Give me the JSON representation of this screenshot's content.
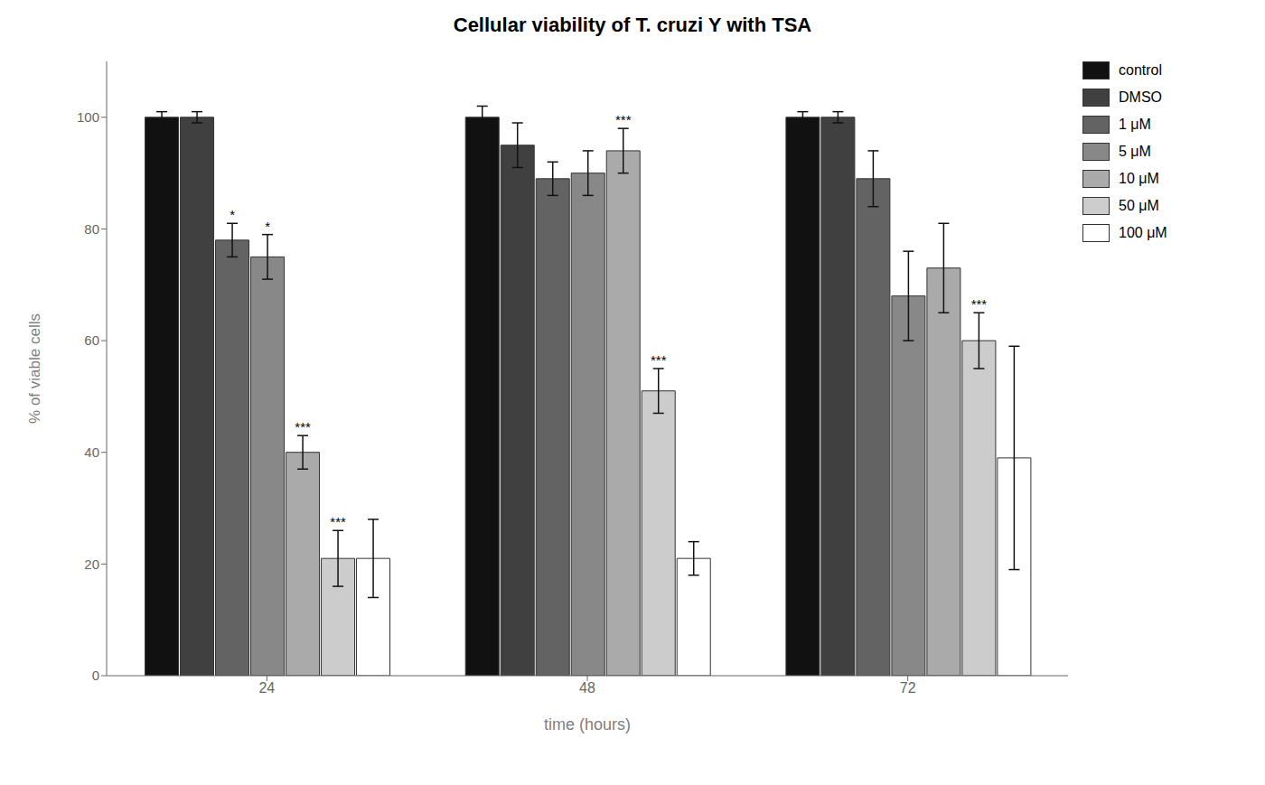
{
  "chart_data": {
    "type": "bar",
    "title": "Cellular viability of T. cruzi Y with TSA",
    "x_label": "time (hours)",
    "y_label": "% of viable cells",
    "categories": [
      "24",
      "48",
      "72"
    ],
    "series": [
      {
        "name": "control",
        "color": "#111111",
        "values": [
          100,
          100,
          100
        ],
        "errors": [
          1,
          2,
          1
        ]
      },
      {
        "name": "DMSO",
        "color": "#404040",
        "values": [
          100,
          95,
          100
        ],
        "errors": [
          1,
          4,
          1
        ]
      },
      {
        "name": "1 μM",
        "color": "#636363",
        "values": [
          78,
          89,
          89
        ],
        "errors": [
          3,
          3,
          5
        ]
      },
      {
        "name": "5 μM",
        "color": "#888888",
        "values": [
          75,
          90,
          68
        ],
        "errors": [
          4,
          4,
          8
        ]
      },
      {
        "name": "10 μM",
        "color": "#aaaaaa",
        "values": [
          40,
          94,
          73
        ],
        "errors": [
          3,
          4,
          8
        ]
      },
      {
        "name": "50 μM",
        "color": "#cccccc",
        "values": [
          21,
          51,
          60
        ],
        "errors": [
          5,
          4,
          5
        ]
      },
      {
        "name": "100 μM",
        "color": "#ffffff",
        "values": [
          21,
          21,
          39
        ],
        "errors": [
          7,
          3,
          20
        ]
      }
    ],
    "annotations": [
      {
        "category": "24",
        "series": "1 μM",
        "text": "*"
      },
      {
        "category": "24",
        "series": "5 μM",
        "text": "*"
      },
      {
        "category": "24",
        "series": "10 μM",
        "text": "***"
      },
      {
        "category": "24",
        "series": "50 μM",
        "text": "***"
      },
      {
        "category": "48",
        "series": "10 μM",
        "text": "***"
      },
      {
        "category": "48",
        "series": "50 μM",
        "text": "***"
      },
      {
        "category": "72",
        "series": "50 μM",
        "text": "***"
      }
    ],
    "ylim": [
      0,
      110
    ],
    "yticks": [
      0,
      20,
      40,
      60,
      80,
      100
    ],
    "grid": false,
    "legend": "right"
  }
}
